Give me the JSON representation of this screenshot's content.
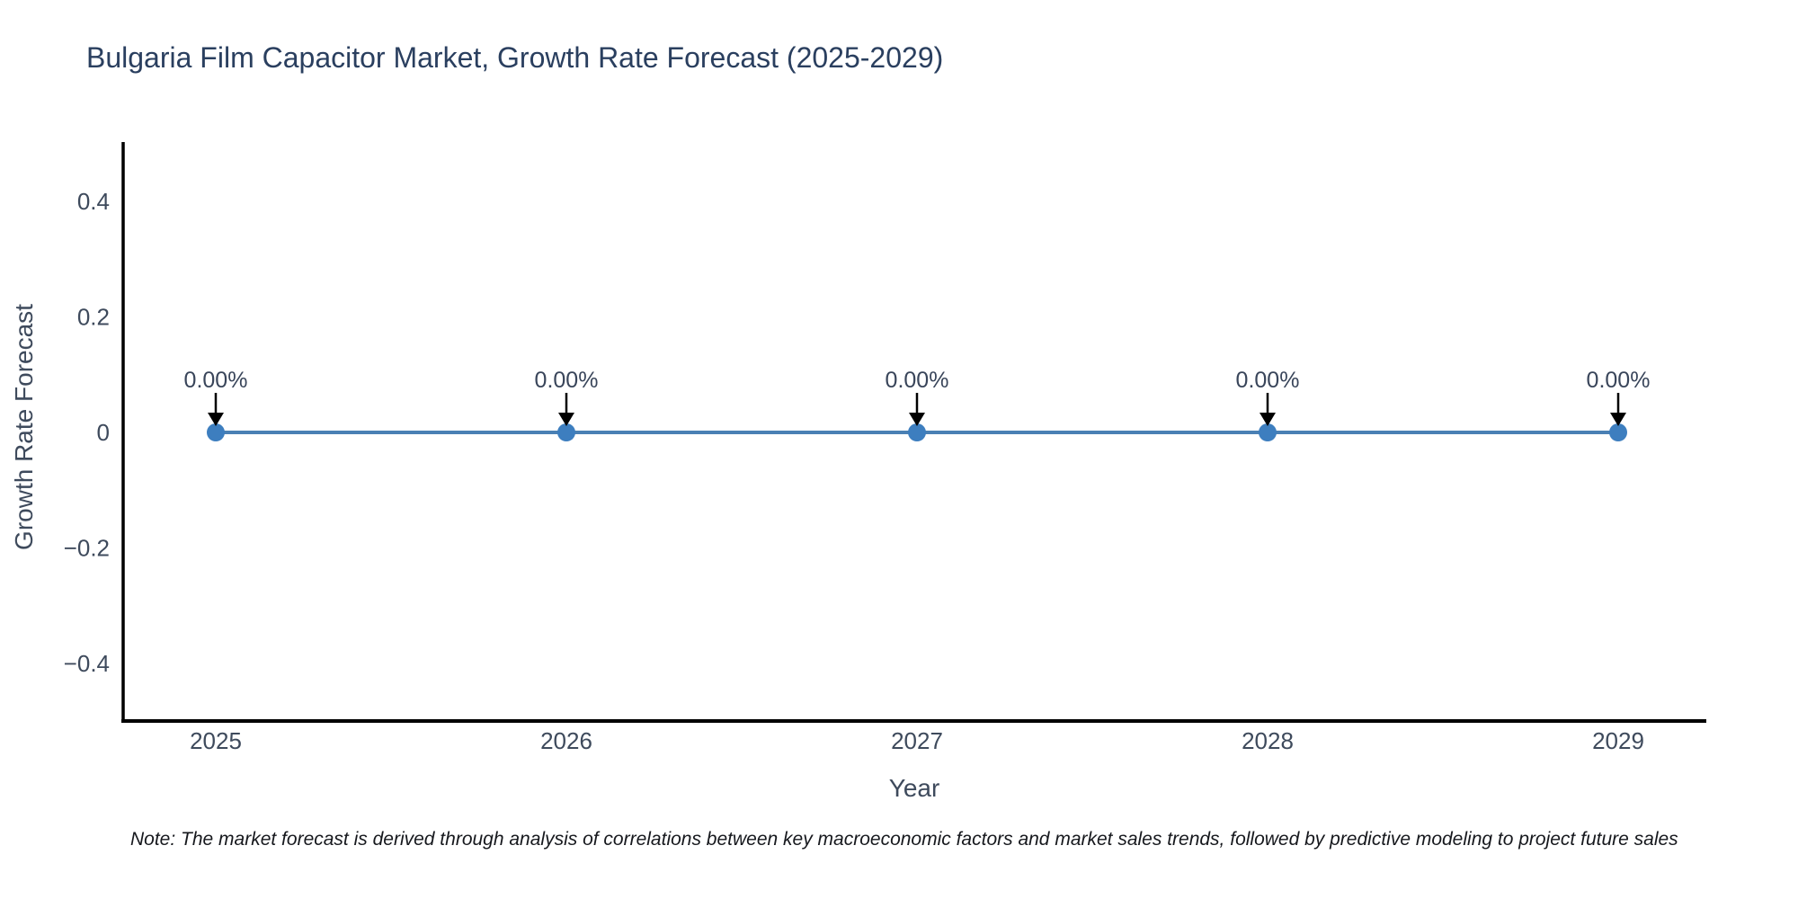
{
  "chart_data": {
    "type": "line",
    "title": "Bulgaria Film Capacitor Market, Growth Rate Forecast (2025-2029)",
    "xlabel": "Year",
    "ylabel": "Growth Rate Forecast",
    "x": [
      2025,
      2026,
      2027,
      2028,
      2029
    ],
    "xtick_labels": [
      "2025",
      "2026",
      "2027",
      "2028",
      "2029"
    ],
    "series": [
      {
        "name": "Growth Rate Forecast",
        "values": [
          0,
          0,
          0,
          0,
          0
        ]
      }
    ],
    "point_labels": [
      "0.00%",
      "0.00%",
      "0.00%",
      "0.00%",
      "0.00%"
    ],
    "ylim": [
      -0.5,
      0.5
    ],
    "yticks": [
      0.4,
      0.2,
      0,
      -0.2,
      -0.4
    ],
    "ytick_labels": [
      "0.4",
      "0.2",
      "0",
      "−0.2",
      "−0.4"
    ],
    "grid": false,
    "legend": "none",
    "colors": {
      "line": "#4a80b4",
      "marker": "#3d7ebf",
      "arrow": "#000000",
      "spine": "#000000",
      "title_text": "#2a3f5f",
      "axis_text": "#3e4a5c",
      "annotation_text": "#39455a"
    }
  },
  "footnote": {
    "text": "Note: The market forecast is derived through analysis of correlations between key macroeconomic factors and market sales trends, followed by predictive modeling to project future sales"
  }
}
